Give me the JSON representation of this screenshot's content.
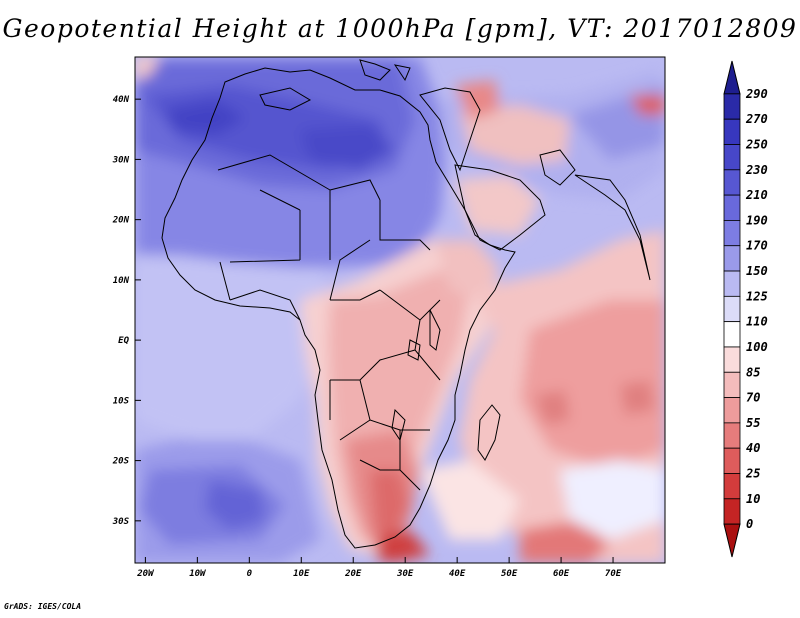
{
  "title": "Geopotential Height at 1000hPa [gpm], VT: 2017012809",
  "footer": "GrADS: IGES/COLA",
  "map": {
    "variable": "Geopotential Height at 1000hPa",
    "units": "gpm",
    "valid_time": "2017012809",
    "lon_range": [
      -22,
      80
    ],
    "lat_range": [
      -37,
      47
    ],
    "x_ticks": [
      "20W",
      "10W",
      "0",
      "10E",
      "20E",
      "30E",
      "40E",
      "50E",
      "60E",
      "70E"
    ],
    "y_ticks": [
      "40N",
      "30N",
      "20N",
      "10N",
      "EQ",
      "10S",
      "20S",
      "30S"
    ]
  },
  "colorbar": {
    "labels": [
      "290",
      "270",
      "250",
      "230",
      "210",
      "190",
      "170",
      "150",
      "125",
      "110",
      "100",
      "85",
      "70",
      "55",
      "40",
      "25",
      "10",
      "0"
    ],
    "colors": [
      "#1e1e8f",
      "#2a2aa8",
      "#3737be",
      "#4747c9",
      "#5757d2",
      "#6969dc",
      "#7d7de3",
      "#9a9aea",
      "#babaf2",
      "#dcdcf8",
      "#ffffff",
      "#fadcdc",
      "#f4bcbc",
      "#ee9c9c",
      "#e67c7c",
      "#de5c5c",
      "#d33c3c",
      "#c42424",
      "#aa1010"
    ]
  }
}
